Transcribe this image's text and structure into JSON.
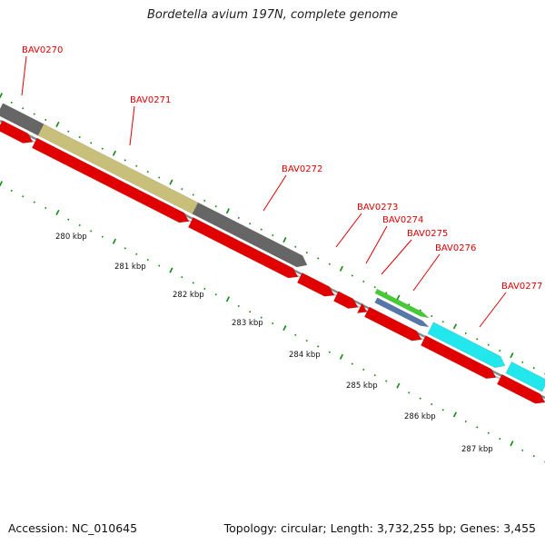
{
  "title": "Bordetella avium 197N, complete genome",
  "footer": {
    "accession": "Accession: NC_010645",
    "summary": "Topology: circular; Length: 3,732,255 bp; Genes: 3,455"
  },
  "colors": {
    "cds_forward": "#e00000",
    "gene_gray": "#666666",
    "gene_khaki": "#c8c07a",
    "gene_green": "#44cc33",
    "gene_steelblue": "#5577aa",
    "gene_cyan": "#22e8ee",
    "backbone": "#888888",
    "tick": "#118811",
    "label": "#dd0000"
  },
  "gene_labels": [
    "BAV0270",
    "BAV0271",
    "BAV0272",
    "BAV0273",
    "BAV0274",
    "BAV0275",
    "BAV0276",
    "BAV0277"
  ],
  "kbp_labels": [
    "280 kbp",
    "281 kbp",
    "282 kbp",
    "283 kbp",
    "284 kbp",
    "285 kbp",
    "286 kbp",
    "287 kbp"
  ]
}
